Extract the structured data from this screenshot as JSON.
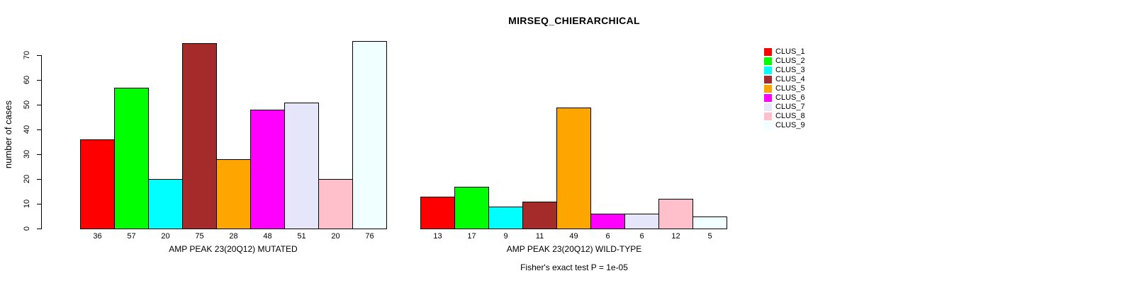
{
  "chart_data": {
    "type": "bar",
    "title": "MIRSEQ_CHIERARCHICAL",
    "ylabel": "number of cases",
    "ylim": [
      0,
      76
    ],
    "yticks": [
      0,
      10,
      20,
      30,
      40,
      50,
      60,
      70
    ],
    "grid": false,
    "legend_position": "right",
    "legend": [
      {
        "label": "CLUS_1",
        "color": "#FF0000"
      },
      {
        "label": "CLUS_2",
        "color": "#00FF00"
      },
      {
        "label": "CLUS_3",
        "color": "#00FFFF"
      },
      {
        "label": "CLUS_4",
        "color": "#A52A2A"
      },
      {
        "label": "CLUS_5",
        "color": "#FFA500"
      },
      {
        "label": "CLUS_6",
        "color": "#FF00FF"
      },
      {
        "label": "CLUS_7",
        "color": "#E6E6FA"
      },
      {
        "label": "CLUS_8",
        "color": "#FFC0CB"
      },
      {
        "label": "CLUS_9",
        "color": "#F0FFFF"
      }
    ],
    "panels": [
      {
        "xlabel": "AMP PEAK 23(20Q12) MUTATED",
        "bar_labels": [
          "36",
          "57",
          "20",
          "75",
          "28",
          "48",
          "51",
          "20",
          "76"
        ],
        "values": [
          36,
          57,
          20,
          75,
          28,
          48,
          51,
          20,
          76
        ]
      },
      {
        "xlabel": "AMP PEAK 23(20Q12) WILD-TYPE",
        "bar_labels": [
          "13",
          "17",
          "9",
          "11",
          "49",
          "6",
          "6",
          "12",
          "5"
        ],
        "values": [
          13,
          17,
          9,
          11,
          49,
          6,
          6,
          12,
          5
        ]
      }
    ],
    "annotation": "Fisher's exact test P = 1e-05"
  }
}
